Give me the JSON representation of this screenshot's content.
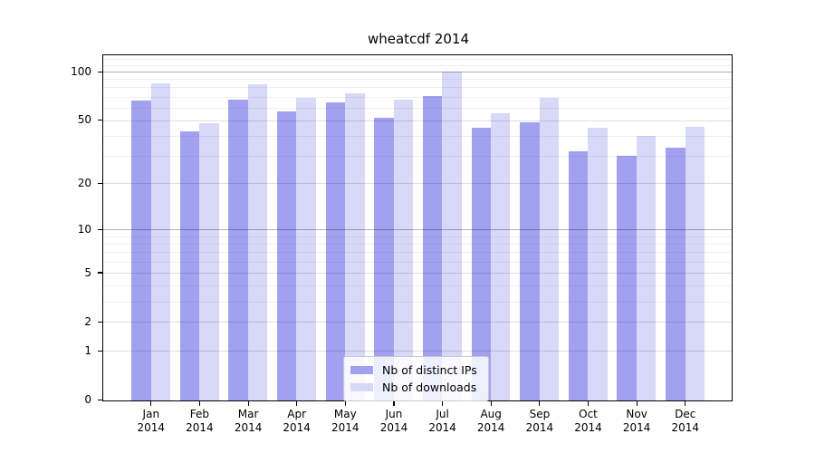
{
  "figure": {
    "background": "#ffffff"
  },
  "chart_data": {
    "type": "bar",
    "title": "wheatcdf 2014",
    "categories": [
      "Jan 2014",
      "Feb 2014",
      "Mar 2014",
      "Apr 2014",
      "May 2014",
      "Jun 2014",
      "Jul 2014",
      "Aug 2014",
      "Sep 2014",
      "Oct 2014",
      "Nov 2014",
      "Dec 2014"
    ],
    "x_tick_labels": {
      "months": [
        "Jan",
        "Feb",
        "Mar",
        "Apr",
        "May",
        "Jun",
        "Jul",
        "Aug",
        "Sep",
        "Oct",
        "Nov",
        "Dec"
      ],
      "year": "2014"
    },
    "series": [
      {
        "name": "Nb of distinct IPs",
        "color": "#a1a1f0",
        "values": [
          67,
          43,
          68,
          57,
          65,
          52,
          71,
          45,
          49,
          32,
          30,
          34
        ]
      },
      {
        "name": "Nb of downloads",
        "color": "#d8d8f8",
        "values": [
          85,
          48,
          84,
          69,
          74,
          68,
          101,
          56,
          69,
          45,
          40,
          46
        ]
      }
    ],
    "xlabel": "",
    "ylabel": "",
    "y_axis": {
      "scale": "log1p",
      "tick_values": [
        0,
        1,
        2,
        5,
        10,
        20,
        50,
        100
      ],
      "tick_labels": [
        "0",
        "1",
        "2",
        "5",
        "10",
        "20",
        "50",
        "100"
      ],
      "range": [
        0,
        126
      ]
    },
    "grid": {
      "on": true,
      "major_values": [
        10,
        100
      ],
      "medium_values": [
        1,
        2,
        5,
        20,
        50
      ],
      "minor_values": [
        3,
        4,
        6,
        7,
        8,
        9,
        30,
        40,
        60,
        70,
        80,
        90,
        110,
        120
      ],
      "major_color": "rgba(0,0,0,0.30)",
      "medium_color": "rgba(0,0,0,0.13)",
      "minor_color": "rgba(0,0,0,0.06)"
    },
    "legend": {
      "position": "lower center",
      "entries": [
        "Nb of distinct IPs",
        "Nb of downloads"
      ]
    }
  }
}
